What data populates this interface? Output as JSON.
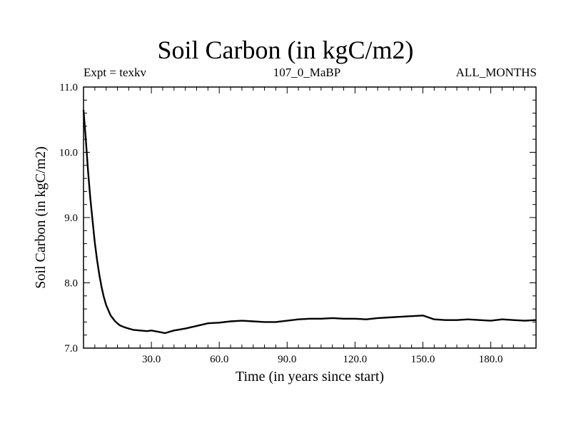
{
  "chart_data": {
    "type": "line",
    "title": "Soil Carbon (in kgC/m2)",
    "subtitle_left": "Expt = texkv",
    "subtitle_center": "107_0_MaBP",
    "subtitle_right": "ALL_MONTHS",
    "xlabel": "Time (in years since start)",
    "ylabel": "Soil Carbon (in kgC/m2)",
    "xlim": [
      0,
      200
    ],
    "ylim": [
      7.0,
      11.0
    ],
    "x_ticks": [
      30,
      60,
      90,
      120,
      150,
      180
    ],
    "x_tick_labels": [
      "30.0",
      "60.0",
      "90.0",
      "120.0",
      "150.0",
      "180.0"
    ],
    "y_ticks": [
      7,
      8,
      9,
      10,
      11
    ],
    "y_tick_labels": [
      "7.0",
      "8.0",
      "9.0",
      "10.0",
      "11.0"
    ],
    "series": [
      {
        "name": "Soil Carbon",
        "color": "#000000",
        "x": [
          0,
          1,
          2,
          3,
          4,
          5,
          6,
          7,
          8,
          9,
          10,
          12,
          14,
          16,
          18,
          20,
          22,
          25,
          28,
          30,
          33,
          36,
          38,
          40,
          45,
          50,
          55,
          60,
          65,
          70,
          75,
          80,
          85,
          90,
          95,
          100,
          105,
          110,
          115,
          120,
          125,
          130,
          135,
          140,
          145,
          150,
          155,
          160,
          165,
          170,
          175,
          180,
          185,
          190,
          195,
          200
        ],
        "values": [
          10.65,
          10.2,
          9.72,
          9.3,
          8.95,
          8.62,
          8.35,
          8.12,
          7.93,
          7.78,
          7.66,
          7.5,
          7.41,
          7.35,
          7.32,
          7.3,
          7.28,
          7.27,
          7.26,
          7.27,
          7.25,
          7.23,
          7.25,
          7.27,
          7.3,
          7.34,
          7.38,
          7.39,
          7.41,
          7.42,
          7.41,
          7.4,
          7.4,
          7.42,
          7.44,
          7.45,
          7.45,
          7.46,
          7.45,
          7.45,
          7.44,
          7.46,
          7.47,
          7.48,
          7.49,
          7.5,
          7.44,
          7.43,
          7.43,
          7.44,
          7.43,
          7.42,
          7.44,
          7.43,
          7.42,
          7.43
        ]
      }
    ]
  }
}
